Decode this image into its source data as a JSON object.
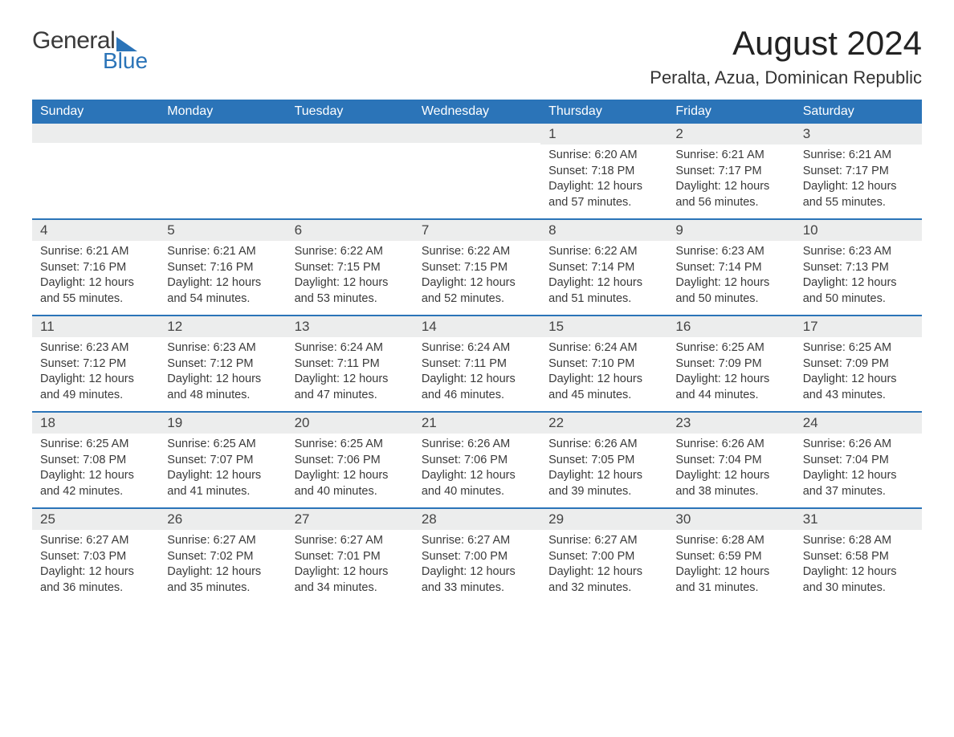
{
  "logo": {
    "general": "General",
    "blue": "Blue"
  },
  "title": "August 2024",
  "location": "Peralta, Azua, Dominican Republic",
  "colors": {
    "brand_blue": "#2b74b8",
    "header_text": "#ffffff",
    "daynum_bg": "#eceded",
    "body_text": "#3a3a3a",
    "page_bg": "#ffffff"
  },
  "weekdays": [
    "Sunday",
    "Monday",
    "Tuesday",
    "Wednesday",
    "Thursday",
    "Friday",
    "Saturday"
  ],
  "weeks": [
    [
      {
        "day": "",
        "sunrise": "",
        "sunset": "",
        "daylight1": "",
        "daylight2": ""
      },
      {
        "day": "",
        "sunrise": "",
        "sunset": "",
        "daylight1": "",
        "daylight2": ""
      },
      {
        "day": "",
        "sunrise": "",
        "sunset": "",
        "daylight1": "",
        "daylight2": ""
      },
      {
        "day": "",
        "sunrise": "",
        "sunset": "",
        "daylight1": "",
        "daylight2": ""
      },
      {
        "day": "1",
        "sunrise": "Sunrise: 6:20 AM",
        "sunset": "Sunset: 7:18 PM",
        "daylight1": "Daylight: 12 hours",
        "daylight2": "and 57 minutes."
      },
      {
        "day": "2",
        "sunrise": "Sunrise: 6:21 AM",
        "sunset": "Sunset: 7:17 PM",
        "daylight1": "Daylight: 12 hours",
        "daylight2": "and 56 minutes."
      },
      {
        "day": "3",
        "sunrise": "Sunrise: 6:21 AM",
        "sunset": "Sunset: 7:17 PM",
        "daylight1": "Daylight: 12 hours",
        "daylight2": "and 55 minutes."
      }
    ],
    [
      {
        "day": "4",
        "sunrise": "Sunrise: 6:21 AM",
        "sunset": "Sunset: 7:16 PM",
        "daylight1": "Daylight: 12 hours",
        "daylight2": "and 55 minutes."
      },
      {
        "day": "5",
        "sunrise": "Sunrise: 6:21 AM",
        "sunset": "Sunset: 7:16 PM",
        "daylight1": "Daylight: 12 hours",
        "daylight2": "and 54 minutes."
      },
      {
        "day": "6",
        "sunrise": "Sunrise: 6:22 AM",
        "sunset": "Sunset: 7:15 PM",
        "daylight1": "Daylight: 12 hours",
        "daylight2": "and 53 minutes."
      },
      {
        "day": "7",
        "sunrise": "Sunrise: 6:22 AM",
        "sunset": "Sunset: 7:15 PM",
        "daylight1": "Daylight: 12 hours",
        "daylight2": "and 52 minutes."
      },
      {
        "day": "8",
        "sunrise": "Sunrise: 6:22 AM",
        "sunset": "Sunset: 7:14 PM",
        "daylight1": "Daylight: 12 hours",
        "daylight2": "and 51 minutes."
      },
      {
        "day": "9",
        "sunrise": "Sunrise: 6:23 AM",
        "sunset": "Sunset: 7:14 PM",
        "daylight1": "Daylight: 12 hours",
        "daylight2": "and 50 minutes."
      },
      {
        "day": "10",
        "sunrise": "Sunrise: 6:23 AM",
        "sunset": "Sunset: 7:13 PM",
        "daylight1": "Daylight: 12 hours",
        "daylight2": "and 50 minutes."
      }
    ],
    [
      {
        "day": "11",
        "sunrise": "Sunrise: 6:23 AM",
        "sunset": "Sunset: 7:12 PM",
        "daylight1": "Daylight: 12 hours",
        "daylight2": "and 49 minutes."
      },
      {
        "day": "12",
        "sunrise": "Sunrise: 6:23 AM",
        "sunset": "Sunset: 7:12 PM",
        "daylight1": "Daylight: 12 hours",
        "daylight2": "and 48 minutes."
      },
      {
        "day": "13",
        "sunrise": "Sunrise: 6:24 AM",
        "sunset": "Sunset: 7:11 PM",
        "daylight1": "Daylight: 12 hours",
        "daylight2": "and 47 minutes."
      },
      {
        "day": "14",
        "sunrise": "Sunrise: 6:24 AM",
        "sunset": "Sunset: 7:11 PM",
        "daylight1": "Daylight: 12 hours",
        "daylight2": "and 46 minutes."
      },
      {
        "day": "15",
        "sunrise": "Sunrise: 6:24 AM",
        "sunset": "Sunset: 7:10 PM",
        "daylight1": "Daylight: 12 hours",
        "daylight2": "and 45 minutes."
      },
      {
        "day": "16",
        "sunrise": "Sunrise: 6:25 AM",
        "sunset": "Sunset: 7:09 PM",
        "daylight1": "Daylight: 12 hours",
        "daylight2": "and 44 minutes."
      },
      {
        "day": "17",
        "sunrise": "Sunrise: 6:25 AM",
        "sunset": "Sunset: 7:09 PM",
        "daylight1": "Daylight: 12 hours",
        "daylight2": "and 43 minutes."
      }
    ],
    [
      {
        "day": "18",
        "sunrise": "Sunrise: 6:25 AM",
        "sunset": "Sunset: 7:08 PM",
        "daylight1": "Daylight: 12 hours",
        "daylight2": "and 42 minutes."
      },
      {
        "day": "19",
        "sunrise": "Sunrise: 6:25 AM",
        "sunset": "Sunset: 7:07 PM",
        "daylight1": "Daylight: 12 hours",
        "daylight2": "and 41 minutes."
      },
      {
        "day": "20",
        "sunrise": "Sunrise: 6:25 AM",
        "sunset": "Sunset: 7:06 PM",
        "daylight1": "Daylight: 12 hours",
        "daylight2": "and 40 minutes."
      },
      {
        "day": "21",
        "sunrise": "Sunrise: 6:26 AM",
        "sunset": "Sunset: 7:06 PM",
        "daylight1": "Daylight: 12 hours",
        "daylight2": "and 40 minutes."
      },
      {
        "day": "22",
        "sunrise": "Sunrise: 6:26 AM",
        "sunset": "Sunset: 7:05 PM",
        "daylight1": "Daylight: 12 hours",
        "daylight2": "and 39 minutes."
      },
      {
        "day": "23",
        "sunrise": "Sunrise: 6:26 AM",
        "sunset": "Sunset: 7:04 PM",
        "daylight1": "Daylight: 12 hours",
        "daylight2": "and 38 minutes."
      },
      {
        "day": "24",
        "sunrise": "Sunrise: 6:26 AM",
        "sunset": "Sunset: 7:04 PM",
        "daylight1": "Daylight: 12 hours",
        "daylight2": "and 37 minutes."
      }
    ],
    [
      {
        "day": "25",
        "sunrise": "Sunrise: 6:27 AM",
        "sunset": "Sunset: 7:03 PM",
        "daylight1": "Daylight: 12 hours",
        "daylight2": "and 36 minutes."
      },
      {
        "day": "26",
        "sunrise": "Sunrise: 6:27 AM",
        "sunset": "Sunset: 7:02 PM",
        "daylight1": "Daylight: 12 hours",
        "daylight2": "and 35 minutes."
      },
      {
        "day": "27",
        "sunrise": "Sunrise: 6:27 AM",
        "sunset": "Sunset: 7:01 PM",
        "daylight1": "Daylight: 12 hours",
        "daylight2": "and 34 minutes."
      },
      {
        "day": "28",
        "sunrise": "Sunrise: 6:27 AM",
        "sunset": "Sunset: 7:00 PM",
        "daylight1": "Daylight: 12 hours",
        "daylight2": "and 33 minutes."
      },
      {
        "day": "29",
        "sunrise": "Sunrise: 6:27 AM",
        "sunset": "Sunset: 7:00 PM",
        "daylight1": "Daylight: 12 hours",
        "daylight2": "and 32 minutes."
      },
      {
        "day": "30",
        "sunrise": "Sunrise: 6:28 AM",
        "sunset": "Sunset: 6:59 PM",
        "daylight1": "Daylight: 12 hours",
        "daylight2": "and 31 minutes."
      },
      {
        "day": "31",
        "sunrise": "Sunrise: 6:28 AM",
        "sunset": "Sunset: 6:58 PM",
        "daylight1": "Daylight: 12 hours",
        "daylight2": "and 30 minutes."
      }
    ]
  ]
}
